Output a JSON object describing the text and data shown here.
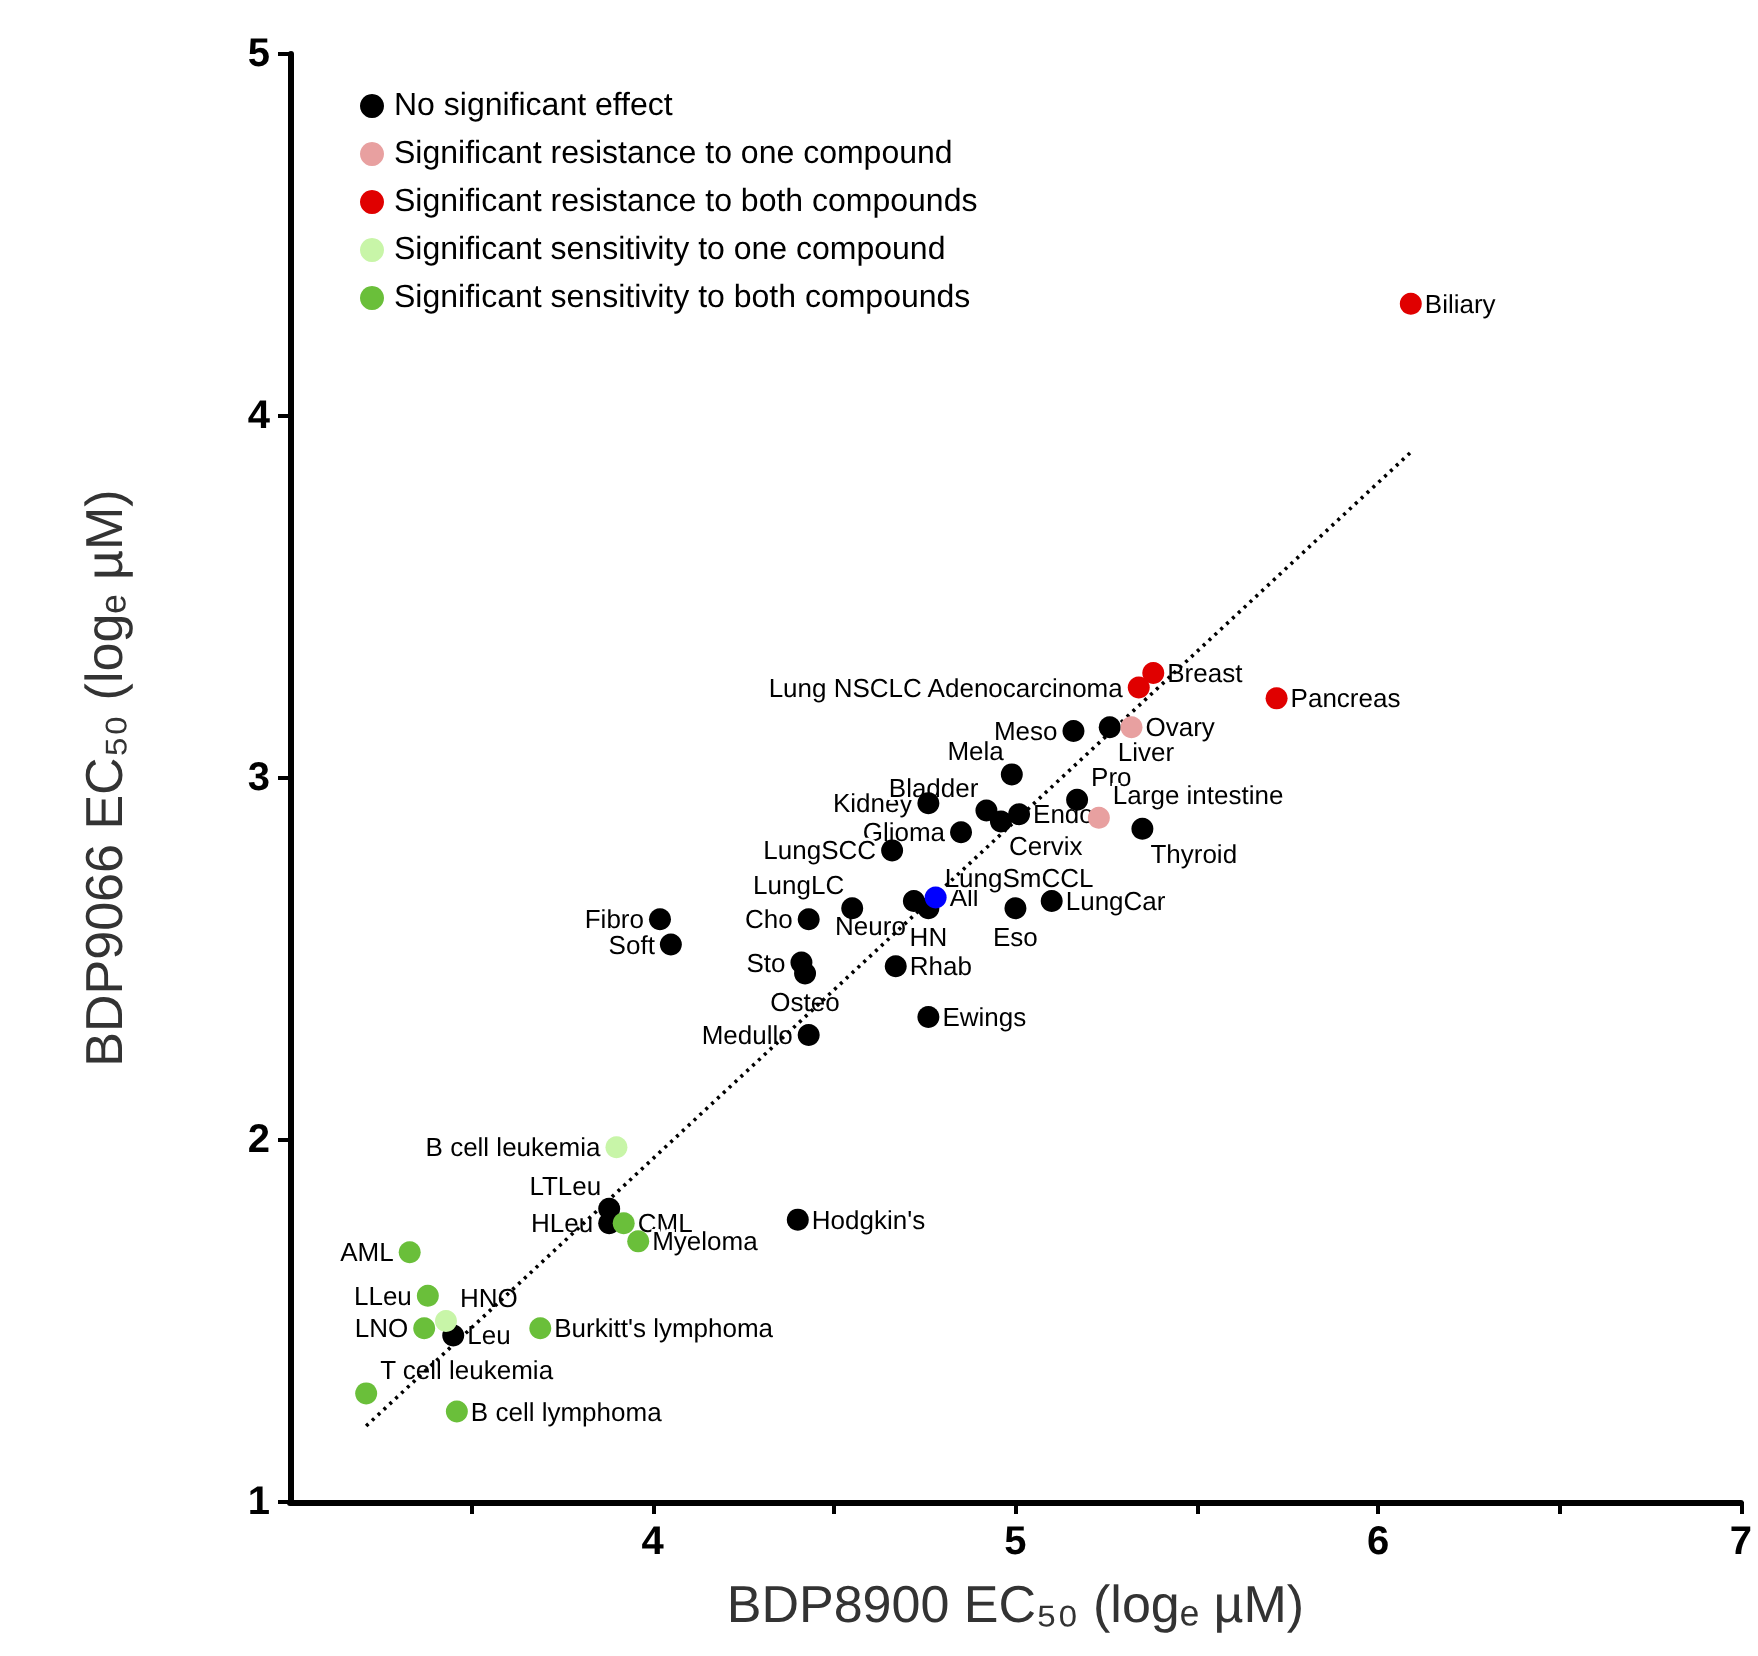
{
  "chart_data": {
    "type": "scatter",
    "xlabel": "BDP8900 EC₅₀ (logₑ µM)",
    "ylabel": "BDP9066 EC₅₀ (logₑ µM)",
    "xlim": [
      3,
      7
    ],
    "ylim": [
      1,
      5
    ],
    "xticks": [
      {
        "value": 3.5,
        "label": null
      },
      4,
      {
        "value": 4.5,
        "label": null
      },
      5,
      {
        "value": 5.5,
        "label": null
      },
      6,
      {
        "value": 6.5,
        "label": null
      },
      7
    ],
    "yticks": [
      1,
      2,
      3,
      4,
      5
    ],
    "grid": false,
    "legend": "top left",
    "marker": "circle",
    "series": [
      {
        "name": "No significant effect",
        "color": "#000000",
        "x": [
          5.26,
          5.16,
          4.99,
          4.76,
          4.92,
          5.17,
          5.01,
          4.96,
          4.85,
          5.35,
          4.66,
          4.55,
          4.72,
          4.76,
          null,
          5.0,
          5.1,
          4.43,
          4.41,
          4.42,
          4.67,
          4.76,
          4.43,
          4.02,
          4.05,
          3.88,
          3.88,
          4.4,
          3.45
        ],
        "values": [
          3.14,
          3.13,
          3.01,
          2.93,
          2.91,
          2.94,
          2.9,
          2.88,
          2.85,
          2.86,
          2.8,
          2.64,
          2.66,
          2.64,
          null,
          2.64,
          2.66,
          2.61,
          2.49,
          2.46,
          2.48,
          2.34,
          2.29,
          2.61,
          2.54,
          1.81,
          1.77,
          1.78,
          1.46
        ]
      },
      {
        "name": "Significant resistance to one compound",
        "color": "#e8a0a0",
        "x": [
          5.32,
          5.23
        ],
        "values": [
          3.14,
          2.89
        ]
      },
      {
        "name": "Significant resistance to both compounds",
        "color": "#e00000",
        "x": [
          6.09,
          5.38,
          5.34,
          5.72
        ],
        "values": [
          4.31,
          3.29,
          3.25,
          3.22
        ]
      },
      {
        "name": "Significant sensitivity to one compound",
        "color": "#c8f5a8",
        "x": [
          3.9,
          3.43
        ],
        "values": [
          1.98,
          1.5
        ]
      },
      {
        "name": "Significant sensitivity to both compounds",
        "color": "#6abf3a",
        "x": [
          3.92,
          3.96,
          3.33,
          3.38,
          3.37,
          3.69,
          3.21,
          3.46
        ],
        "values": [
          1.77,
          1.72,
          1.69,
          1.57,
          1.48,
          1.48,
          1.3,
          1.25
        ]
      },
      {
        "color": "#0000ff",
        "x": [
          4.78
        ],
        "values": [
          2.67
        ]
      },
      {
        "type": "line",
        "color": "#000000",
        "marker": "none",
        "line_style": "dotted",
        "x": [
          3.21,
          6.09
        ],
        "values": [
          1.21,
          3.9
        ]
      }
    ],
    "annotations": [
      {
        "text": "Biliary",
        "x": 6.09,
        "y": 4.31
      },
      {
        "text": "Breast",
        "x": 5.38,
        "y": 3.29
      },
      {
        "text": "Lung NSCLC Adenocarcinoma",
        "x": 5.34,
        "y": 3.25
      },
      {
        "text": "Pancreas",
        "x": 5.72,
        "y": 3.22
      },
      {
        "text": "Ovary",
        "x": 5.32,
        "y": 3.14
      },
      {
        "text": "Meso",
        "x": 5.16,
        "y": 3.13
      },
      {
        "text": "Liver",
        "x": 5.26,
        "y": 3.14
      },
      {
        "text": "Mela",
        "x": 4.99,
        "y": 3.01
      },
      {
        "text": "Kidney",
        "x": 4.76,
        "y": 2.93
      },
      {
        "text": "Bladder",
        "x": 4.92,
        "y": 2.91
      },
      {
        "text": "Pro",
        "x": 5.17,
        "y": 2.94
      },
      {
        "text": "Endo",
        "x": 5.01,
        "y": 2.9
      },
      {
        "text": "Cervix",
        "x": 4.96,
        "y": 2.88
      },
      {
        "text": "Large intestine",
        "x": 5.23,
        "y": 2.89
      },
      {
        "text": "Glioma",
        "x": 4.85,
        "y": 2.85
      },
      {
        "text": "Thyroid",
        "x": 5.35,
        "y": 2.86
      },
      {
        "text": "LungSCC",
        "x": 4.66,
        "y": 2.8
      },
      {
        "text": "LungLC",
        "x": 4.55,
        "y": 2.64
      },
      {
        "text": "All",
        "x": 4.78,
        "y": 2.67
      },
      {
        "text": "Neuro",
        "x": 4.72,
        "y": 2.66
      },
      {
        "text": "HN",
        "x": 4.76,
        "y": 2.64
      },
      {
        "text": "LungSmCCL",
        "x": 5.01,
        "y": 2.65
      },
      {
        "text": "Eso",
        "x": 5.0,
        "y": 2.64
      },
      {
        "text": "LungCar",
        "x": 5.1,
        "y": 2.66
      },
      {
        "text": "Cho",
        "x": 4.43,
        "y": 2.61
      },
      {
        "text": "Sto",
        "x": 4.41,
        "y": 2.49
      },
      {
        "text": "Osteo",
        "x": 4.42,
        "y": 2.46
      },
      {
        "text": "Rhab",
        "x": 4.67,
        "y": 2.48
      },
      {
        "text": "Ewings",
        "x": 4.76,
        "y": 2.34
      },
      {
        "text": "Medullo",
        "x": 4.43,
        "y": 2.29
      },
      {
        "text": "Fibro",
        "x": 4.02,
        "y": 2.61
      },
      {
        "text": "Soft",
        "x": 4.05,
        "y": 2.54
      },
      {
        "text": "B cell leukemia",
        "x": 3.9,
        "y": 1.98
      },
      {
        "text": "LTLeu",
        "x": 3.88,
        "y": 1.81
      },
      {
        "text": "HLeu",
        "x": 3.88,
        "y": 1.77
      },
      {
        "text": "CML",
        "x": 3.92,
        "y": 1.77
      },
      {
        "text": "Myeloma",
        "x": 3.96,
        "y": 1.72
      },
      {
        "text": "Hodgkin's",
        "x": 4.4,
        "y": 1.78
      },
      {
        "text": "AML",
        "x": 3.33,
        "y": 1.69
      },
      {
        "text": "LLeu",
        "x": 3.38,
        "y": 1.57
      },
      {
        "text": "HNO",
        "x": 3.43,
        "y": 1.5
      },
      {
        "text": "LNO",
        "x": 3.37,
        "y": 1.48
      },
      {
        "text": "Leu",
        "x": 3.45,
        "y": 1.46
      },
      {
        "text": "Burkitt's lymphoma",
        "x": 3.69,
        "y": 1.48
      },
      {
        "text": "T cell leukemia",
        "x": 3.21,
        "y": 1.3
      },
      {
        "text": "B cell lymphoma",
        "x": 3.46,
        "y": 1.25
      }
    ]
  }
}
